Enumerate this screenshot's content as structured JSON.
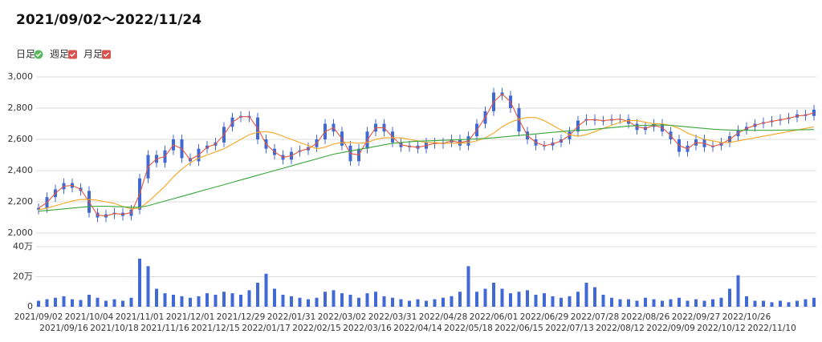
{
  "chart_data": {
    "type": "candlestick",
    "title": "2021/09/02〜2022/11/24",
    "toggles": [
      "日足",
      "週足",
      "月足"
    ],
    "categories": [
      "2021/09/02",
      null,
      null,
      "2021/09/16",
      null,
      null,
      "2021/10/04",
      null,
      null,
      "2021/10/18",
      null,
      null,
      "2021/11/01",
      null,
      null,
      "2021/11/16",
      null,
      null,
      "2021/12/01",
      null,
      null,
      "2021/12/15",
      null,
      null,
      "2021/12/29",
      null,
      null,
      "2022/01/17",
      null,
      null,
      "2022/01/31",
      null,
      null,
      "2022/02/15",
      null,
      null,
      "2022/03/02",
      null,
      null,
      "2022/03/16",
      null,
      null,
      "2022/03/31",
      null,
      null,
      "2022/04/14",
      null,
      null,
      "2022/04/28",
      null,
      null,
      "2022/05/18",
      null,
      null,
      "2022/06/01",
      null,
      null,
      "2022/06/15",
      null,
      null,
      "2022/06/29",
      null,
      null,
      "2022/07/13",
      null,
      null,
      "2022/07/28",
      null,
      null,
      "2022/08/12",
      null,
      null,
      "2022/08/26",
      null,
      null,
      "2022/09/09",
      null,
      null,
      "2022/09/27",
      null,
      null,
      "2022/10/12",
      null,
      null,
      "2022/10/26",
      null,
      null,
      "2022/11/10",
      null,
      null,
      null,
      null,
      null
    ],
    "open": [
      2150,
      2160,
      2230,
      2280,
      2320,
      2290,
      2270,
      2130,
      2100,
      2120,
      2130,
      2110,
      2150,
      2350,
      2500,
      2450,
      2530,
      2600,
      2480,
      2460,
      2540,
      2560,
      2580,
      2680,
      2740,
      2750,
      2740,
      2600,
      2540,
      2500,
      2470,
      2520,
      2530,
      2550,
      2600,
      2700,
      2650,
      2560,
      2460,
      2540,
      2650,
      2700,
      2650,
      2580,
      2550,
      2560,
      2540,
      2580,
      2570,
      2580,
      2600,
      2560,
      2620,
      2700,
      2780,
      2900,
      2880,
      2800,
      2650,
      2600,
      2560,
      2560,
      2580,
      2600,
      2650,
      2720,
      2730,
      2720,
      2720,
      2730,
      2730,
      2700,
      2660,
      2680,
      2700,
      2650,
      2600,
      2520,
      2560,
      2600,
      2550,
      2560,
      2580,
      2620,
      2660,
      2680,
      2700,
      2710,
      2720,
      2730,
      2740,
      2760,
      2750
    ],
    "high": [
      2190,
      2260,
      2310,
      2350,
      2350,
      2320,
      2300,
      2160,
      2150,
      2160,
      2160,
      2180,
      2380,
      2530,
      2530,
      2560,
      2630,
      2630,
      2510,
      2570,
      2590,
      2610,
      2710,
      2770,
      2780,
      2780,
      2770,
      2630,
      2570,
      2530,
      2550,
      2560,
      2580,
      2630,
      2730,
      2730,
      2680,
      2590,
      2570,
      2680,
      2730,
      2730,
      2680,
      2610,
      2590,
      2590,
      2610,
      2610,
      2610,
      2630,
      2630,
      2650,
      2730,
      2810,
      2930,
      2930,
      2910,
      2830,
      2680,
      2630,
      2590,
      2610,
      2630,
      2680,
      2750,
      2760,
      2760,
      2750,
      2760,
      2760,
      2760,
      2730,
      2710,
      2730,
      2730,
      2680,
      2630,
      2590,
      2630,
      2630,
      2590,
      2610,
      2650,
      2690,
      2710,
      2730,
      2740,
      2750,
      2760,
      2770,
      2790,
      2790,
      2820
    ],
    "low": [
      2120,
      2130,
      2200,
      2250,
      2260,
      2240,
      2100,
      2070,
      2070,
      2090,
      2080,
      2080,
      2120,
      2320,
      2420,
      2420,
      2500,
      2450,
      2430,
      2430,
      2510,
      2530,
      2550,
      2650,
      2710,
      2710,
      2570,
      2510,
      2470,
      2440,
      2440,
      2490,
      2500,
      2520,
      2570,
      2620,
      2530,
      2430,
      2430,
      2510,
      2620,
      2620,
      2550,
      2520,
      2520,
      2510,
      2510,
      2540,
      2540,
      2550,
      2530,
      2530,
      2590,
      2670,
      2750,
      2850,
      2770,
      2620,
      2570,
      2530,
      2530,
      2530,
      2550,
      2570,
      2620,
      2690,
      2690,
      2690,
      2690,
      2700,
      2670,
      2630,
      2630,
      2650,
      2620,
      2570,
      2490,
      2490,
      2530,
      2520,
      2520,
      2530,
      2550,
      2590,
      2630,
      2650,
      2670,
      2680,
      2690,
      2700,
      2710,
      2720,
      2720
    ],
    "close": [
      2160,
      2230,
      2280,
      2320,
      2290,
      2270,
      2130,
      2100,
      2120,
      2130,
      2110,
      2150,
      2350,
      2500,
      2450,
      2530,
      2600,
      2480,
      2460,
      2540,
      2560,
      2580,
      2680,
      2740,
      2750,
      2740,
      2600,
      2540,
      2500,
      2470,
      2520,
      2530,
      2550,
      2600,
      2700,
      2650,
      2560,
      2460,
      2540,
      2650,
      2700,
      2650,
      2580,
      2550,
      2560,
      2540,
      2580,
      2570,
      2580,
      2600,
      2560,
      2620,
      2700,
      2780,
      2900,
      2880,
      2800,
      2650,
      2600,
      2560,
      2560,
      2580,
      2600,
      2650,
      2720,
      2730,
      2720,
      2720,
      2730,
      2730,
      2700,
      2660,
      2680,
      2700,
      2650,
      2600,
      2520,
      2560,
      2600,
      2550,
      2560,
      2580,
      2620,
      2660,
      2680,
      2700,
      2710,
      2720,
      2730,
      2740,
      2760,
      2750,
      2790
    ],
    "volume": [
      40000,
      50000,
      60000,
      70000,
      50000,
      45000,
      80000,
      60000,
      40000,
      50000,
      40000,
      60000,
      320000,
      270000,
      120000,
      90000,
      80000,
      70000,
      60000,
      70000,
      90000,
      80000,
      100000,
      90000,
      80000,
      110000,
      160000,
      220000,
      120000,
      80000,
      70000,
      60000,
      50000,
      60000,
      100000,
      110000,
      90000,
      80000,
      60000,
      90000,
      100000,
      70000,
      60000,
      50000,
      40000,
      50000,
      40000,
      50000,
      60000,
      70000,
      100000,
      270000,
      100000,
      120000,
      160000,
      120000,
      90000,
      100000,
      110000,
      80000,
      90000,
      70000,
      60000,
      70000,
      100000,
      160000,
      130000,
      80000,
      60000,
      50000,
      50000,
      40000,
      60000,
      50000,
      40000,
      50000,
      60000,
      40000,
      50000,
      40000,
      50000,
      60000,
      120000,
      210000,
      70000,
      40000,
      40000,
      30000,
      40000,
      30000,
      40000,
      50000,
      60000
    ],
    "candle_color": "#4169d6",
    "lines": [
      {
        "color": "#e8543c",
        "values": [
          2160,
          2195,
          2255,
          2300,
          2305,
          2280,
          2200,
          2115,
          2110,
          2125,
          2120,
          2130,
          2250,
          2425,
          2475,
          2490,
          2565,
          2540,
          2470,
          2500,
          2550,
          2570,
          2630,
          2710,
          2745,
          2745,
          2670,
          2570,
          2520,
          2485,
          2495,
          2525,
          2540,
          2575,
          2650,
          2675,
          2605,
          2510,
          2500,
          2595,
          2675,
          2675,
          2615,
          2565,
          2555,
          2550,
          2560,
          2575,
          2575,
          2590,
          2580,
          2590,
          2660,
          2740,
          2840,
          2890,
          2840,
          2725,
          2625,
          2580,
          2560,
          2570,
          2590,
          2625,
          2685,
          2725,
          2725,
          2720,
          2725,
          2730,
          2715,
          2680,
          2670,
          2690,
          2675,
          2625,
          2560,
          2540,
          2580,
          2575,
          2555,
          2570,
          2600,
          2640,
          2670,
          2690,
          2705,
          2715,
          2725,
          2735,
          2750,
          2755,
          2770
        ]
      },
      {
        "color": "#f5a623",
        "values": [
          2150,
          2160,
          2175,
          2190,
          2205,
          2215,
          2215,
          2210,
          2200,
          2190,
          2170,
          2155,
          2160,
          2200,
          2250,
          2300,
          2360,
          2410,
          2450,
          2480,
          2500,
          2520,
          2540,
          2570,
          2600,
          2630,
          2645,
          2650,
          2640,
          2620,
          2600,
          2580,
          2560,
          2540,
          2550,
          2570,
          2580,
          2580,
          2575,
          2580,
          2600,
          2610,
          2610,
          2610,
          2600,
          2590,
          2580,
          2580,
          2575,
          2575,
          2575,
          2580,
          2590,
          2610,
          2640,
          2680,
          2710,
          2730,
          2740,
          2740,
          2720,
          2690,
          2660,
          2630,
          2620,
          2630,
          2650,
          2670,
          2690,
          2710,
          2720,
          2720,
          2710,
          2700,
          2700,
          2690,
          2670,
          2640,
          2620,
          2600,
          2590,
          2580,
          2580,
          2590,
          2600,
          2610,
          2620,
          2630,
          2640,
          2650,
          2660,
          2670,
          2680
        ]
      },
      {
        "color": "#3aa63a",
        "values": [
          2140,
          2145,
          2150,
          2155,
          2160,
          2165,
          2170,
          2172,
          2172,
          2170,
          2168,
          2165,
          2165,
          2175,
          2190,
          2205,
          2220,
          2235,
          2250,
          2265,
          2280,
          2295,
          2310,
          2325,
          2340,
          2355,
          2370,
          2385,
          2400,
          2415,
          2430,
          2445,
          2460,
          2475,
          2490,
          2505,
          2515,
          2525,
          2535,
          2545,
          2555,
          2565,
          2575,
          2580,
          2585,
          2588,
          2590,
          2592,
          2594,
          2596,
          2598,
          2600,
          2603,
          2606,
          2610,
          2615,
          2620,
          2625,
          2630,
          2635,
          2640,
          2645,
          2650,
          2655,
          2658,
          2660,
          2665,
          2670,
          2675,
          2680,
          2685,
          2688,
          2690,
          2692,
          2692,
          2690,
          2685,
          2680,
          2675,
          2670,
          2665,
          2662,
          2660,
          2658,
          2658,
          2658,
          2658,
          2658,
          2659,
          2660,
          2661,
          2662,
          2663
        ]
      }
    ],
    "ylim": [
      2000,
      3000
    ],
    "yticks": [
      {
        "value": 2000,
        "label": "2,000"
      },
      {
        "value": 2200,
        "label": "2,200"
      },
      {
        "value": 2400,
        "label": "2,400"
      },
      {
        "value": 2600,
        "label": "2,600"
      },
      {
        "value": 2800,
        "label": "2,800"
      },
      {
        "value": 3000,
        "label": "3,000"
      }
    ],
    "y2lim": [
      0,
      400000
    ],
    "y2ticks": [
      0,
      {
        "value": 200000,
        "label": "20万"
      },
      {
        "value": 400000,
        "label": "40万"
      }
    ],
    "grid": true
  }
}
